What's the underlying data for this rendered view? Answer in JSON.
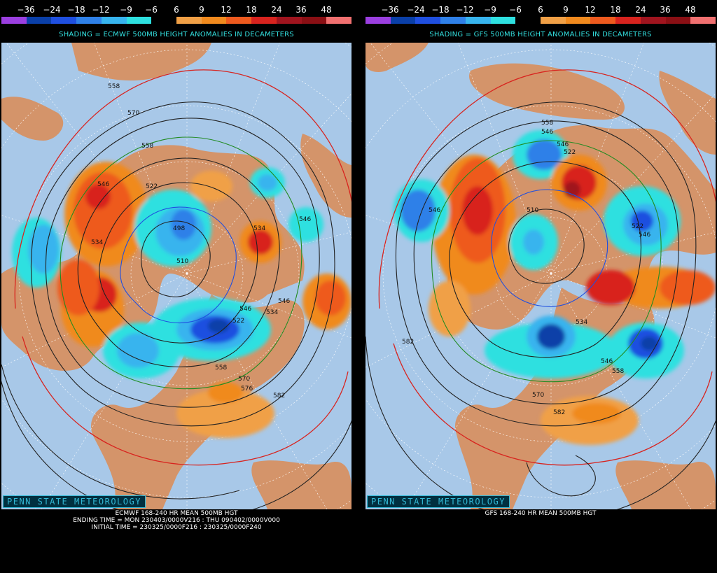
{
  "scale_labels": [
    "−36",
    "−24",
    "−18",
    "−12",
    "−9",
    "−6",
    "6",
    "9",
    "12",
    "18",
    "24",
    "36",
    "48"
  ],
  "scale_colors": [
    "#9b3fe0",
    "#0a3fa8",
    "#1f4fe0",
    "#2f80e8",
    "#37b4ee",
    "#2ee0e0",
    "#000000",
    "#f0a046",
    "#f08a1e",
    "#ee5a1e",
    "#d8231e",
    "#a0141e",
    "#8a0f14",
    "#f07070"
  ],
  "map_colors": {
    "ocean": "#a8c8e8",
    "land": "#d4946a",
    "grid": "#ffffff"
  },
  "left_panel": {
    "shading_label": "SHADING = ECMWF 500MB HEIGHT ANOMALIES IN DECAMETERS",
    "brand": "PENN STATE METEOROLOGY",
    "caption_line1": "ECMWF 168-240 HR MEAN 500MB HGT",
    "caption_line2": "ENDING TIME = MON 230403/0000V216 : THU 090402/0000V000",
    "caption_line3": "INITIAL TIME = 230325/0000F216 : 230325/0000F240",
    "contour_labels": [
      "558",
      "570",
      "558",
      "546",
      "522",
      "534",
      "498",
      "510",
      "534",
      "522",
      "546",
      "546",
      "534",
      "546",
      "558",
      "570",
      "582",
      "576"
    ]
  },
  "right_panel": {
    "shading_label": "SHADING = GFS 500MB HEIGHT ANOMALIES IN DECAMETERS",
    "brand": "PENN STATE METEOROLOGY",
    "caption_line1": "GFS 168-240 HR MEAN 500MB HGT",
    "contour_labels": [
      "558",
      "546",
      "546",
      "522",
      "546",
      "510",
      "522",
      "546",
      "534",
      "582",
      "546",
      "558",
      "570",
      "582"
    ]
  }
}
